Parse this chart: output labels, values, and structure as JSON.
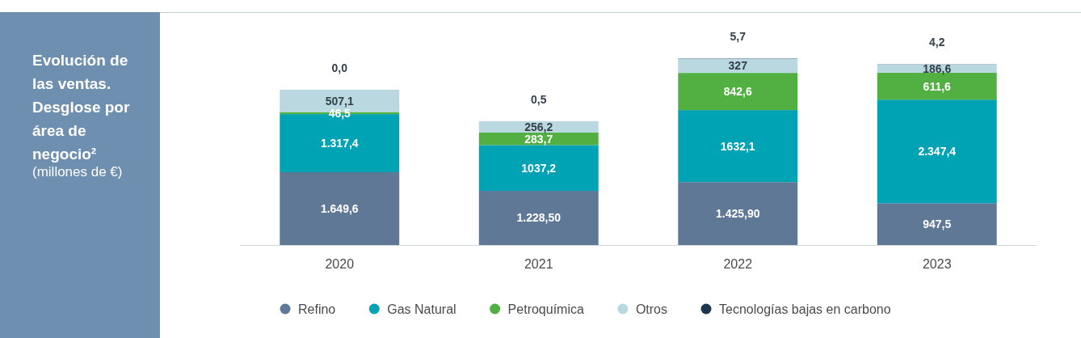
{
  "chart_data": {
    "type": "bar",
    "stacked": true,
    "title": "Evolución de las ventas. Desglose por área de negocio²",
    "subtitle": "(millones de €)",
    "categories": [
      "2020",
      "2021",
      "2022",
      "2023"
    ],
    "legend": "bottom",
    "data_labels": true,
    "series": [
      {
        "name": "Refino",
        "color": "#5f7896",
        "values": [
          1649.6,
          1228.5,
          1425.9,
          947.5
        ],
        "value_labels": [
          "1.649,6",
          "1.228,50",
          "1.425,90",
          "947,5"
        ]
      },
      {
        "name": "Gas Natural",
        "color": "#00a3b4",
        "values": [
          1317.4,
          1037.2,
          1632.1,
          2347.4
        ],
        "value_labels": [
          "1.317,4",
          "1037,2",
          "1632,1",
          "2.347,4"
        ]
      },
      {
        "name": "Petroquímica",
        "color": "#52b043",
        "values": [
          46.5,
          283.7,
          842.6,
          611.6
        ],
        "value_labels": [
          "46,5",
          "283,7",
          "842,6",
          "611,6"
        ]
      },
      {
        "name": "Otros",
        "color": "#b9d8e0",
        "values": [
          507.1,
          256.2,
          327,
          186.6
        ],
        "value_labels": [
          "507,1",
          "256,2",
          "327",
          "186,6"
        ]
      },
      {
        "name": "Tecnologías bajas en carbono",
        "color": "#1e3550",
        "values": [
          0,
          0.5,
          5.7,
          4.2
        ],
        "value_labels": [
          "0,0",
          "0,5",
          "5,7",
          "4,2"
        ]
      }
    ]
  }
}
